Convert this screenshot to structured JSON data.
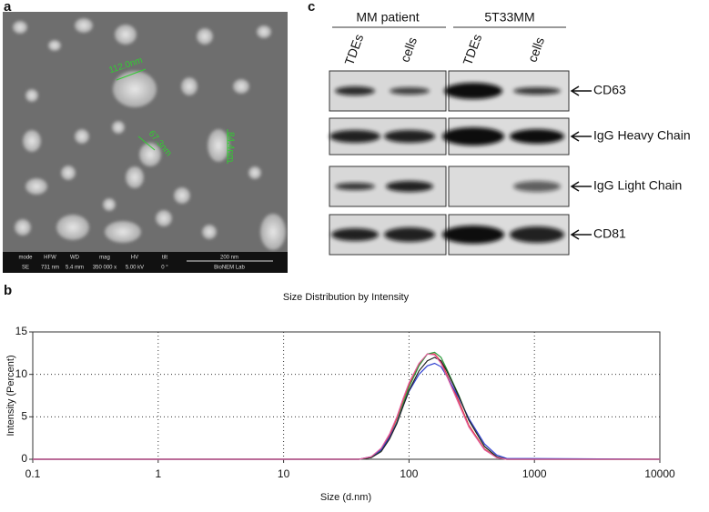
{
  "panel_a": {
    "label": "a",
    "measurements": [
      "112.0nm",
      "67.3nm",
      "84.4nm"
    ],
    "info_bar": [
      [
        "mode",
        "SE"
      ],
      [
        "HFW",
        "731 nm"
      ],
      [
        "WD",
        "5.4 mm"
      ],
      [
        "mag",
        "350 000 x"
      ],
      [
        "HV",
        "5.00 kV"
      ],
      [
        "tilt",
        "0 °"
      ]
    ],
    "scale_bar": "200 nm",
    "lab": "BioNEM Lab"
  },
  "panel_c": {
    "label": "c",
    "groups": [
      "MM patient",
      "5T33MM"
    ],
    "lanes": [
      "TDEs",
      "cells",
      "TDEs",
      "cells"
    ],
    "rows": [
      "CD63",
      "IgG Heavy Chain",
      "IgG Light Chain",
      "CD81"
    ]
  },
  "chart_data": {
    "type": "line",
    "label": "b",
    "title": "Size Distribution by Intensity",
    "x_label": "Size (d.nm)",
    "y_label": "Intensity (Percent)",
    "log_x": true,
    "grid": true,
    "xlim": [
      0.1,
      10000
    ],
    "xticks": [
      0.1,
      1,
      10,
      100,
      1000,
      10000
    ],
    "ylim": [
      0,
      15
    ],
    "yticks": [
      0,
      5,
      10,
      15
    ],
    "x": [
      0.1,
      40,
      50,
      60,
      70,
      80,
      90,
      100,
      120,
      140,
      160,
      180,
      200,
      250,
      300,
      400,
      500,
      600,
      10000
    ],
    "series": [
      {
        "color": "#e03030",
        "values": [
          0,
          0,
          0.3,
          1.2,
          2.8,
          4.8,
          7,
          8.8,
          11.2,
          12.4,
          12.4,
          11.5,
          10,
          6.8,
          4,
          1.2,
          0.2,
          0,
          0
        ]
      },
      {
        "color": "#2a9a3a",
        "values": [
          0,
          0,
          0.2,
          1,
          2.5,
          4.4,
          6.6,
          8.5,
          11,
          12.4,
          12.6,
          12,
          10.6,
          7.5,
          4.6,
          1.5,
          0.3,
          0,
          0
        ]
      },
      {
        "color": "#3040d0",
        "values": [
          0,
          0,
          0.3,
          1.1,
          2.6,
          4.3,
          6.3,
          8,
          10,
          11,
          11.3,
          10.9,
          9.8,
          7.2,
          4.8,
          1.8,
          0.5,
          0.1,
          0
        ]
      },
      {
        "color": "#222222",
        "values": [
          0,
          0,
          0.2,
          0.9,
          2.4,
          4.2,
          6.3,
          8.1,
          10.4,
          11.6,
          12,
          11.6,
          10.4,
          7.4,
          4.6,
          1.5,
          0.3,
          0,
          0
        ]
      },
      {
        "color": "#e060a0",
        "values": [
          0,
          0,
          0.3,
          1.3,
          3,
          5,
          7.2,
          9,
          11.3,
          12.4,
          12.3,
          11.3,
          9.8,
          6.5,
          3.8,
          1.1,
          0.2,
          0,
          0
        ]
      }
    ]
  }
}
